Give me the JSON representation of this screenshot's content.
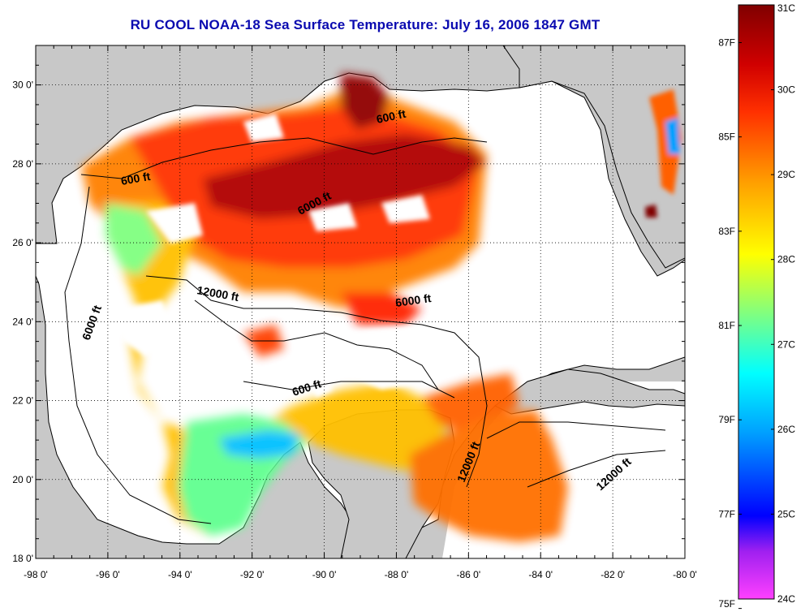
{
  "title": "RU COOL  NOAA-18  Sea Surface Temperature:  July 16, 2006 1847 GMT",
  "map": {
    "lon_range": [
      -98,
      -80
    ],
    "lat_range": [
      18,
      31
    ],
    "lon_ticks": [
      "-98 0'",
      "-96 0'",
      "-94 0'",
      "-92 0'",
      "-90 0'",
      "-88 0'",
      "-86 0'",
      "-84 0'",
      "-82 0'",
      "-80 0'"
    ],
    "lat_ticks": [
      "18 0'",
      "20 0'",
      "22 0'",
      "24 0'",
      "26 0'",
      "28 0'",
      "30 0'"
    ],
    "grid": "dotted",
    "land_color": "#c8c8c8",
    "ocean_nodata_color": "#ffffff",
    "contour_labels": [
      "600 ft",
      "600 ft",
      "6000 ft",
      "6000 ft",
      "6000 ft",
      "12000 ft",
      "600 ft",
      "12000 ft",
      "12000 ft"
    ]
  },
  "colorbar": {
    "celsius_labels": [
      "31C",
      "30C",
      "29C",
      "28C",
      "27C",
      "26C",
      "25C",
      "24C"
    ],
    "fahrenheit_labels": [
      "87F",
      "85F",
      "83F",
      "81F",
      "79F",
      "77F",
      "75F"
    ],
    "range_c": [
      24,
      31
    ],
    "colors": [
      "#ff40ff",
      "#a020f0",
      "#0000ff",
      "#00a0ff",
      "#00ffff",
      "#80ff80",
      "#ffff00",
      "#ffa000",
      "#ff3000",
      "#d00000",
      "#800000"
    ]
  }
}
